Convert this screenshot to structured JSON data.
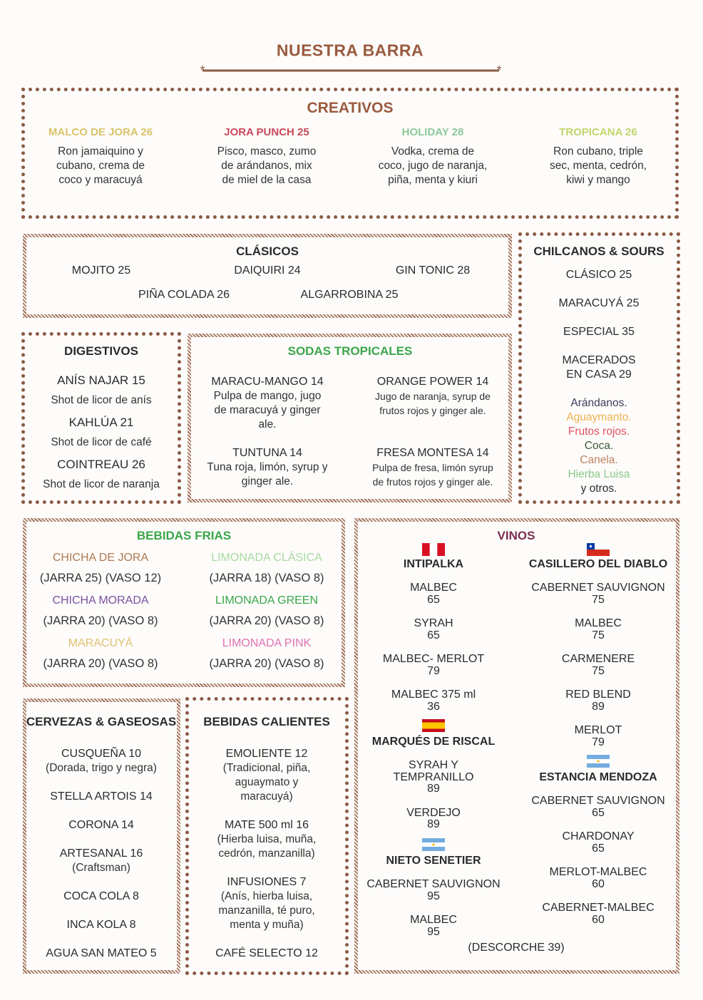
{
  "title": "NUESTRA BARRA",
  "colors": {
    "heading": "#9a5a3e",
    "border": "#8b5a44",
    "green": "#3aa64a",
    "wine": "#7a2e50"
  },
  "creativos": {
    "title": "CREATIVOS",
    "items": [
      {
        "name": "MALCO DE JORA 26",
        "color": "#d9c46a",
        "desc": [
          "Ron jamaiquino y",
          "cubano, crema de",
          "coco y maracuyá"
        ]
      },
      {
        "name": "JORA PUNCH 25",
        "color": "#c9475a",
        "desc": [
          "Pisco, masco, zumo",
          "de arándanos, mix",
          "de miel de la casa"
        ]
      },
      {
        "name": "HOLIDAY 28",
        "color": "#8cc79a",
        "desc": [
          "Vodka, crema de",
          "coco, jugo de naranja,",
          "piña, menta y kiuri"
        ]
      },
      {
        "name": "TROPICANA 26",
        "color": "#c5d46a",
        "desc": [
          "Ron cubano, triple",
          "sec, menta, cedrón,",
          "kiwi y mango"
        ]
      }
    ]
  },
  "clasicos": {
    "title": "CLÁSICOS",
    "items": [
      "MOJITO 25",
      "DAIQUIRI 24",
      "GIN TONIC 28",
      "PIÑA COLADA 26",
      "ALGARROBINA 25"
    ]
  },
  "chilcanos": {
    "title": "CHILCANOS & SOURS",
    "items": [
      "CLÁSICO 25",
      "MARACUYÁ 25",
      "ESPECIAL 35",
      "MACERADOS",
      "EN CASA 29"
    ],
    "flavors": [
      {
        "t": "Arándanos.",
        "c": "#3c3c5a"
      },
      {
        "t": "Aguaymanto.",
        "c": "#f0b050"
      },
      {
        "t": "Frutos rojos.",
        "c": "#e05060"
      },
      {
        "t": "Coca.",
        "c": "#3a5a3a"
      },
      {
        "t": "Canela.",
        "c": "#c08060"
      },
      {
        "t": "Hierba Luisa",
        "c": "#8cc78a"
      },
      {
        "t": "y otros.",
        "c": "#2b2b2b"
      }
    ]
  },
  "digestivos": {
    "title": "DIGESTIVOS",
    "items": [
      {
        "name": "ANÍS NAJAR 15",
        "desc": "Shot de licor de anís"
      },
      {
        "name": "KAHLÚA 21",
        "desc": "Shot de licor de café"
      },
      {
        "name": "COINTREAU 26",
        "desc": "Shot de licor de naranja"
      }
    ]
  },
  "sodas": {
    "title": "SODAS TROPICALES",
    "items": [
      {
        "name": "MARACU-MANGO 14",
        "desc": [
          "Pulpa  de  mango,  jugo",
          "de  maracuyá  y  ginger",
          "ale."
        ]
      },
      {
        "name": "ORANGE POWER 14",
        "desc": [
          "Jugo de naranja, syrup de",
          "frutos rojos y ginger ale."
        ]
      },
      {
        "name": "TUNTUNA 14",
        "desc": [
          "Tuna roja, limón, syrup y",
          "ginger ale."
        ]
      },
      {
        "name": "FRESA MONTESA 14",
        "desc": [
          "Pulpa de fresa, limón syrup",
          "de frutos rojos y ginger ale."
        ]
      }
    ]
  },
  "frias": {
    "title": "BEBIDAS FRIAS",
    "items": [
      {
        "name": "CHICHA DE JORA",
        "color": "#b07850",
        "price": "(JARRA 25) (VASO 12)"
      },
      {
        "name": "LIMONADA CLÁSICA",
        "color": "#a8d8a0",
        "price": "(JARRA 18) (VASO 8)"
      },
      {
        "name": "CHICHA MORADA",
        "color": "#7a4fa0",
        "price": "(JARRA 20) (VASO 8)"
      },
      {
        "name": "LIMONADA GREEN",
        "color": "#3aa64a",
        "price": "(JARRA 20) (VASO 8)"
      },
      {
        "name": "MARACUYÁ",
        "color": "#e0c070",
        "price": "(JARRA 20) (VASO 8)"
      },
      {
        "name": "LIMONADA PINK",
        "color": "#e070b0",
        "price": "(JARRA 20) (VASO 8)"
      }
    ]
  },
  "vinos": {
    "title": "VINOS",
    "footer": "(DESCORCHE 39)",
    "wineries": [
      {
        "name": "INTIPALKA",
        "flag": "peru",
        "wines": [
          [
            "MALBEC",
            "65"
          ],
          [
            "SYRAH",
            "65"
          ],
          [
            "MALBEC- MERLOT",
            "79"
          ],
          [
            "MALBEC 375 ml",
            "36"
          ]
        ]
      },
      {
        "name": "MARQUÉS DE RISCAL",
        "flag": "spain",
        "wines": [
          [
            "SYRAH Y",
            "TEMPRANILLO",
            "89"
          ],
          [
            "VERDEJO",
            "89"
          ]
        ]
      },
      {
        "name": "NIETO SENETIER",
        "flag": "argentina",
        "wines": [
          [
            "CABERNET SAUVIGNON",
            "95"
          ],
          [
            "MALBEC",
            "95"
          ]
        ]
      },
      {
        "name": "CASILLERO DEL DIABLO",
        "flag": "chile",
        "wines": [
          [
            "CABERNET SAUVIGNON",
            "75"
          ],
          [
            "MALBEC",
            "75"
          ],
          [
            "CARMENERE",
            "75"
          ],
          [
            "RED BLEND",
            "89"
          ],
          [
            "MERLOT",
            "79"
          ]
        ]
      },
      {
        "name": "ESTANCIA MENDOZA",
        "flag": "argentina",
        "wines": [
          [
            "CABERNET SAUVIGNON",
            "65"
          ],
          [
            "CHARDONAY",
            "65"
          ],
          [
            "MERLOT-MALBEC",
            "60"
          ],
          [
            "CABERNET-MALBEC",
            "60"
          ]
        ]
      }
    ]
  },
  "cervezas": {
    "title": "CERVEZAS & GASEOSAS",
    "items": [
      [
        "CUSQUEÑA 10",
        "(Dorada, trigo y negra)"
      ],
      [
        "STELLA ARTOIS 14"
      ],
      [
        "CORONA 14"
      ],
      [
        "ARTESANAL 16",
        "(Craftsman)"
      ],
      [
        "COCA COLA 8"
      ],
      [
        "INCA KOLA 8"
      ],
      [
        "AGUA SAN MATEO 5"
      ]
    ]
  },
  "calientes": {
    "title": "BEBIDAS CALIENTES",
    "items": [
      [
        "EMOLIENTE 12",
        "(Tradicional, piña,",
        "aguaymato y",
        "maracuyá)"
      ],
      [
        "MATE 500 ml 16",
        "(Hierba luisa, muña,",
        "cedrón, manzanilla)"
      ],
      [
        "INFUSIONES 7",
        "(Anís, hierba luisa,",
        "manzanilla, té puro,",
        "menta y muña)"
      ],
      [
        "CAFÉ SELECTO 12"
      ]
    ]
  }
}
